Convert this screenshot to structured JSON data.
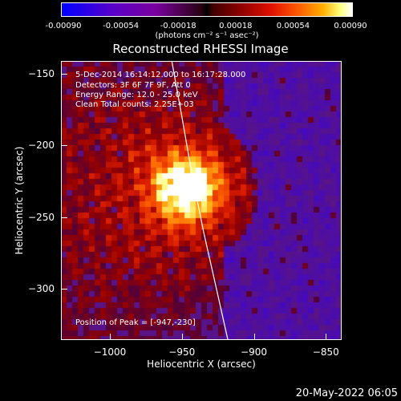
{
  "colorbar": {
    "labels": [
      "-0.00090",
      "-0.00054",
      "-0.00018",
      "0.00018",
      "0.00054",
      "0.00090"
    ],
    "unit": "(photons cm⁻² s⁻¹ asec⁻²)"
  },
  "title": "Reconstructed RHESSI Image",
  "info": {
    "line1": "5-Dec-2014 16:14:12.000 to 16:17:28.000",
    "line2": "Detectors: 3F 6F 7F 9F, Att 0",
    "line3": "Energy Range: 12.0 - 25.0 keV",
    "line4": "Clean     Total counts: 2.25E+03"
  },
  "peak": "Position of Peak = [-947,-230]",
  "chart_data": {
    "type": "heatmap",
    "xlabel": "Heliocentric X (arcsec)",
    "ylabel": "Heliocentric Y (arcsec)",
    "xlim": [
      -1034,
      -839
    ],
    "ylim": [
      -336,
      -141
    ],
    "xticks": [
      -1000,
      -950,
      -900,
      -850
    ],
    "yticks": [
      -150,
      -200,
      -250,
      -300
    ],
    "xtick_labels": [
      "−1000",
      "−950",
      "−900",
      "−850"
    ],
    "ytick_labels": [
      "−150",
      "−200",
      "−250",
      "−300"
    ],
    "peak": [
      -947,
      -230
    ],
    "limb": [
      [
        -957,
        -141
      ],
      [
        -950,
        -180
      ],
      [
        -943,
        -220
      ],
      [
        -935,
        -260
      ],
      [
        -926,
        -300
      ],
      [
        -918,
        -336
      ]
    ]
  },
  "timestamp": "20-May-2022 06:05"
}
